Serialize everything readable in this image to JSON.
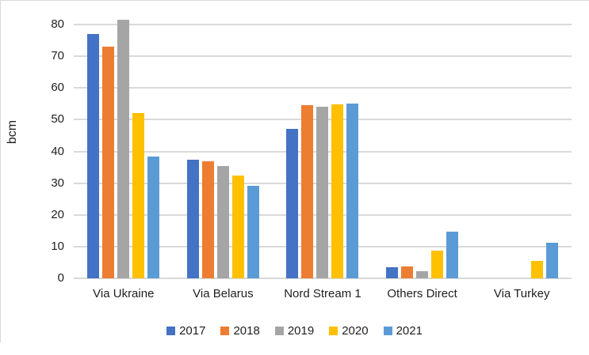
{
  "chart_data": {
    "type": "bar",
    "title": "",
    "ylabel": "bcm",
    "categories": [
      "Via Ukraine",
      "Via Belarus",
      "Nord Stream 1",
      "Others Direct",
      "Via Turkey"
    ],
    "series": [
      {
        "name": "2017",
        "color": "#4472C4",
        "values": [
          77,
          37.3,
          47,
          3.4,
          0
        ]
      },
      {
        "name": "2018",
        "color": "#ED7D31",
        "values": [
          73,
          37,
          54.7,
          3.7,
          0
        ]
      },
      {
        "name": "2019",
        "color": "#A5A5A5",
        "values": [
          81.5,
          35.5,
          54.2,
          2.3,
          0
        ]
      },
      {
        "name": "2020",
        "color": "#FFC000",
        "values": [
          52,
          32.5,
          54.9,
          8.8,
          5.4
        ]
      },
      {
        "name": "2021",
        "color": "#5B9BD5",
        "values": [
          38.5,
          29.2,
          55.2,
          14.7,
          11.3
        ]
      }
    ],
    "yticks": [
      0,
      10,
      20,
      30,
      40,
      50,
      60,
      70,
      80
    ],
    "ylim": [
      0,
      84.2
    ],
    "grid": true,
    "legend_position": "bottom"
  },
  "colors": {
    "gridline": "#D9D9D9",
    "frame_border": "#D9D9D9",
    "text": "#1F1F1F",
    "background": "#FFFFFF"
  }
}
